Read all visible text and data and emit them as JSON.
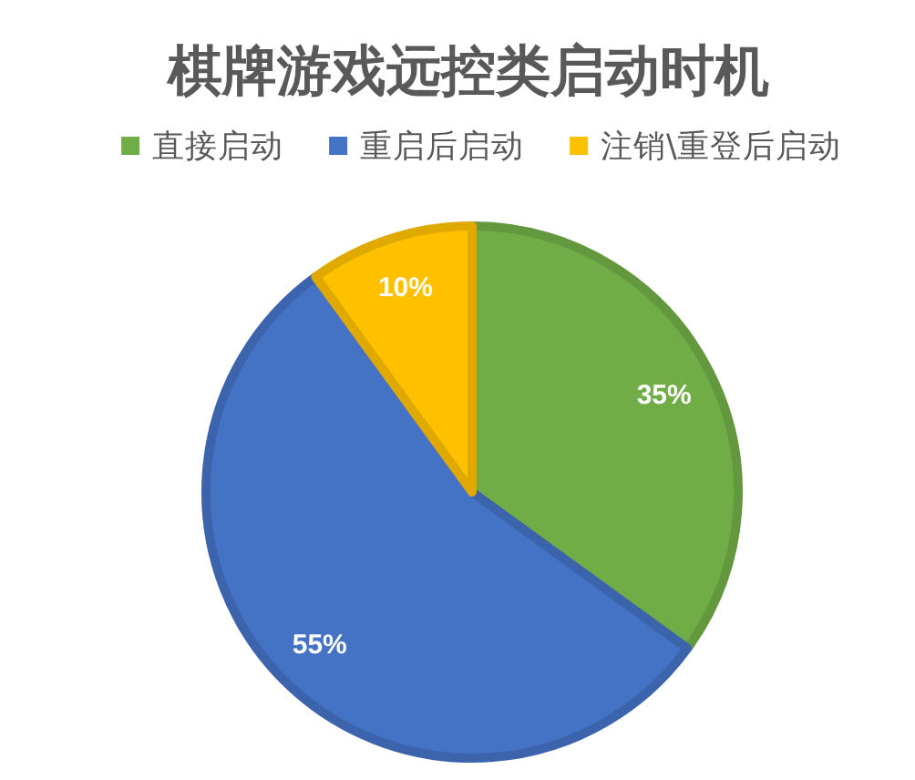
{
  "chart_data": {
    "type": "pie",
    "title": "棋牌游戏远控类启动时机",
    "categories": [
      "直接启动",
      "重启后启动",
      "注销\\重登后启动"
    ],
    "values": [
      35,
      55,
      10
    ],
    "colors": [
      "#70ad47",
      "#4472c4",
      "#ffc000"
    ],
    "value_labels": [
      "35%",
      "55%",
      "10%"
    ],
    "legend": "top"
  }
}
